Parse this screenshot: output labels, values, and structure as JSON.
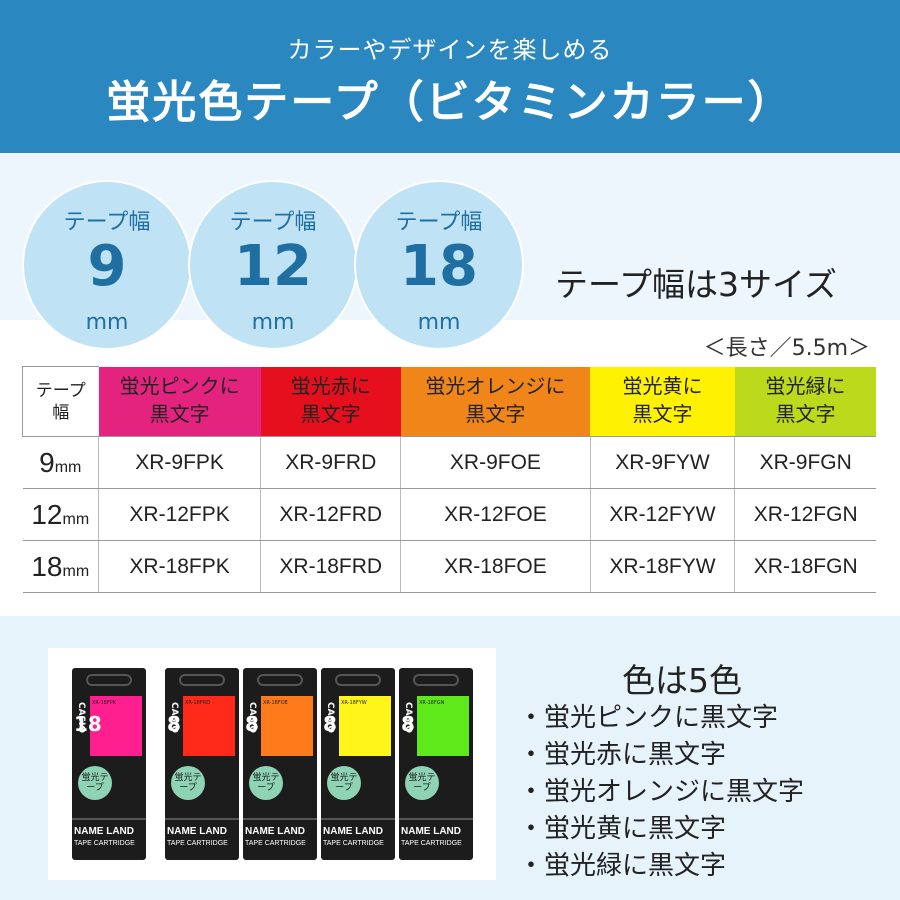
{
  "header": {
    "subtitle": "カラーやデザインを楽しめる",
    "title": "蛍光色テープ（ビタミンカラー）"
  },
  "widths": [
    {
      "label": "テープ幅",
      "value": "9",
      "unit": "mm"
    },
    {
      "label": "テープ幅",
      "value": "12",
      "unit": "mm"
    },
    {
      "label": "テープ幅",
      "value": "18",
      "unit": "mm"
    }
  ],
  "sizes_text": "テープ幅は3サイズ",
  "length_note": "＜長さ／5.5m＞",
  "table": {
    "corner_line1": "テープ",
    "corner_line2": "幅",
    "headers": [
      {
        "line1": "蛍光ピンクに",
        "line2": "黒文字",
        "color": "#e4237f"
      },
      {
        "line1": "蛍光赤に",
        "line2": "黒文字",
        "color": "#e50f1e"
      },
      {
        "line1": "蛍光オレンジに",
        "line2": "黒文字",
        "color": "#f08519"
      },
      {
        "line1": "蛍光黄に",
        "line2": "黒文字",
        "color": "#fff200"
      },
      {
        "line1": "蛍光緑に",
        "line2": "黒文字",
        "color": "#bcd91c"
      }
    ],
    "rows": [
      {
        "width": "9",
        "unit": "mm",
        "codes": [
          "XR-9FPK",
          "XR-9FRD",
          "XR-9FOE",
          "XR-9FYW",
          "XR-9FGN"
        ]
      },
      {
        "width": "12",
        "unit": "mm",
        "codes": [
          "XR-12FPK",
          "XR-12FRD",
          "XR-12FOE",
          "XR-12FYW",
          "XR-12FGN"
        ]
      },
      {
        "width": "18",
        "unit": "mm",
        "codes": [
          "XR-18FPK",
          "XR-18FRD",
          "XR-18FOE",
          "XR-18FYW",
          "XR-18FGN"
        ]
      }
    ]
  },
  "product_photo": {
    "cartridges": [
      {
        "code": "XR-18FPK",
        "color": "#ff1f8e",
        "big": "18"
      },
      {
        "code": "XR-18FRD",
        "color": "#ff2a1a",
        "big": "8"
      },
      {
        "code": "XR-18FOE",
        "color": "#ff7a1a",
        "big": "8"
      },
      {
        "code": "XR-18FYW",
        "color": "#fff51a",
        "big": "8"
      },
      {
        "code": "XR-18FGN",
        "color": "#5fe81a",
        "big": "8"
      }
    ],
    "casio": "CASIO",
    "badge": "蛍光テープ",
    "brand": "NAME LAND",
    "brand2": "TAPE CARTRIDGE"
  },
  "colors": {
    "title": "色は5色",
    "items": [
      "蛍光ピンクに黒文字",
      "蛍光赤に黒文字",
      "蛍光オレンジに黒文字",
      "蛍光黄に黒文字",
      "蛍光緑に黒文字"
    ]
  }
}
